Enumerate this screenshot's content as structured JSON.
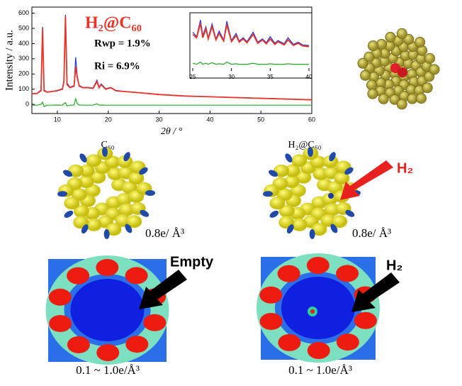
{
  "chart_data": {
    "type": "line",
    "ylabel": "Intensity / a.u.",
    "xlabel": "2θ / °",
    "xlim": [
      5,
      60
    ],
    "xticks": [
      10,
      20,
      30,
      40,
      50,
      60
    ],
    "ylim": [
      -60,
      640
    ],
    "yticks": [
      0,
      100,
      200,
      300,
      400,
      500,
      600
    ],
    "annotations": [
      "H₂@C₆₀",
      "Rwp = 1.9%",
      "Ri = 6.9%"
    ],
    "x": [
      5,
      6,
      6.8,
      7.1,
      7.4,
      8,
      9,
      10,
      11,
      11.3,
      11.6,
      11.9,
      12.5,
      13.3,
      13.6,
      13.9,
      14.3,
      15,
      16,
      17,
      17.8,
      18.2,
      18.6,
      19.5,
      20.5,
      21.5,
      23,
      25,
      30,
      35,
      40,
      45,
      50,
      55,
      60
    ],
    "series": [
      {
        "color": "#2233dd",
        "values": [
          70,
          72,
          95,
          510,
          95,
          82,
          86,
          92,
          104,
          160,
          590,
          140,
          112,
          125,
          310,
          190,
          125,
          112,
          112,
          108,
          160,
          114,
          135,
          104,
          112,
          92,
          86,
          80,
          66,
          56,
          50,
          46,
          41,
          36,
          30
        ]
      },
      {
        "color": "#e8352a",
        "values": [
          70,
          72,
          90,
          500,
          90,
          80,
          85,
          90,
          100,
          150,
          580,
          130,
          110,
          120,
          250,
          180,
          120,
          110,
          110,
          105,
          150,
          110,
          130,
          100,
          110,
          90,
          85,
          80,
          65,
          55,
          50,
          45,
          40,
          35,
          30
        ]
      },
      {
        "color": "#22aa22",
        "values": [
          -5,
          -5,
          0,
          15,
          -15,
          -5,
          -5,
          -4,
          -5,
          5,
          12,
          -10,
          -5,
          -4,
          40,
          5,
          -4,
          -5,
          -5,
          -5,
          4,
          -5,
          -4,
          -5,
          -5,
          -5,
          -5,
          -5,
          -5,
          -5,
          -5,
          -5,
          -5,
          -5,
          -5
        ]
      }
    ],
    "inset": {
      "xlim": [
        25,
        40
      ],
      "xticks": [
        25,
        30,
        35,
        40
      ],
      "ylim": [
        0,
        100
      ],
      "x": [
        25,
        25.5,
        26,
        26.3,
        26.7,
        27,
        27.5,
        28,
        28.4,
        29,
        29.4,
        30,
        30.6,
        31,
        31.5,
        32,
        32.8,
        33.4,
        34,
        34.5,
        35,
        35.6,
        36,
        36.8,
        37.3,
        38,
        38.6,
        39.2,
        40
      ],
      "series": [
        {
          "color": "#2233dd",
          "values": [
            70,
            62,
            92,
            64,
            80,
            60,
            85,
            58,
            72,
            56,
            90,
            55,
            68,
            54,
            60,
            53,
            70,
            52,
            58,
            51,
            62,
            50,
            55,
            49,
            60,
            48,
            52,
            47,
            46
          ]
        },
        {
          "color": "#e8352a",
          "values": [
            66,
            60,
            86,
            60,
            76,
            58,
            80,
            56,
            68,
            54,
            84,
            53,
            64,
            52,
            58,
            51,
            66,
            50,
            56,
            49,
            58,
            48,
            53,
            47,
            56,
            46,
            50,
            45,
            44
          ]
        },
        {
          "color": "#22aa22",
          "values": [
            14,
            12,
            16,
            12,
            14,
            12,
            15,
            12,
            13,
            12,
            16,
            12,
            13,
            12,
            12,
            12,
            14,
            12,
            12,
            12,
            13,
            12,
            12,
            12,
            13,
            12,
            12,
            12,
            12
          ]
        }
      ]
    }
  },
  "panels": {
    "c60_label": "C₆₀",
    "h2c60_label": "H₂@C₆₀",
    "density_left": "0.8e/ Å³",
    "density_right": "0.8e/ Å³",
    "arrow_red": "H₂",
    "arrow_empty": "Empty",
    "arrow_h2": "H₂",
    "range_left": "0.1 ~ 1.0e/Å³",
    "range_right": "0.1 ~ 1.0e/Å³"
  }
}
